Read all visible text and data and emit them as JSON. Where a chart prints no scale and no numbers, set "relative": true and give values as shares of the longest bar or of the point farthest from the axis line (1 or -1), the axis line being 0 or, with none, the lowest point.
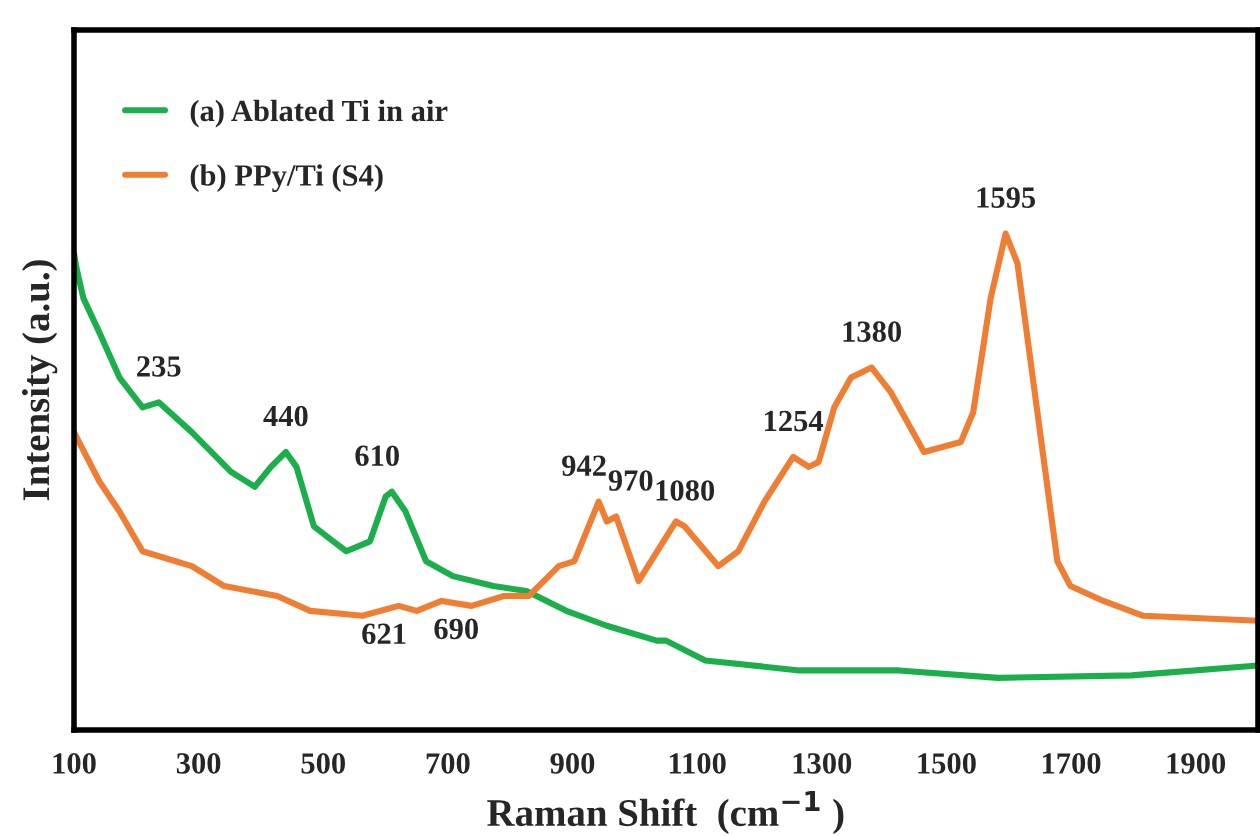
{
  "chart_data": {
    "type": "line",
    "relative": true,
    "xlabel": "Raman Shift  (cm$^{−1}$ )",
    "ylabel": "Intensity (a.u.)",
    "xlim": [
      100,
      2000
    ],
    "xticks": [
      100,
      300,
      500,
      700,
      900,
      1100,
      1300,
      1500,
      1700,
      1900
    ],
    "tick_labels": "x",
    "legend": "top left",
    "grid": false,
    "series": [
      {
        "name": "(a) Ablated Ti in air",
        "color": "#1aaf4b",
        "x": [
          100,
          104,
          115,
          141,
          173,
          210,
          236,
          289,
          352,
          390,
          416,
          440,
          457,
          485,
          516,
          537,
          575,
          600,
          610,
          632,
          665,
          708,
          773,
          826,
          890,
          955,
          1035,
          1050,
          1113,
          1264,
          1424,
          1583,
          1797,
          2000
        ],
        "values": [
          0.96,
          0.93,
          0.87,
          0.8,
          0.71,
          0.65,
          0.66,
          0.6,
          0.52,
          0.49,
          0.53,
          0.56,
          0.53,
          0.41,
          0.38,
          0.36,
          0.38,
          0.47,
          0.48,
          0.44,
          0.34,
          0.31,
          0.29,
          0.28,
          0.24,
          0.21,
          0.18,
          0.18,
          0.14,
          0.12,
          0.12,
          0.105,
          0.11,
          0.13
        ]
      },
      {
        "name": "(b) PPy/Ti (S4)",
        "color": "#ef7d32",
        "x": [
          100,
          104,
          141,
          173,
          210,
          289,
          341,
          426,
          479,
          563,
          621,
          650,
          690,
          738,
          790,
          830,
          878,
          903,
          942,
          955,
          970,
          1006,
          1066,
          1080,
          1134,
          1166,
          1208,
          1254,
          1279,
          1295,
          1320,
          1347,
          1380,
          1411,
          1464,
          1523,
          1543,
          1571,
          1595,
          1614,
          1678,
          1699,
          1752,
          1816,
          2000
        ],
        "values": [
          0.6,
          0.59,
          0.5,
          0.44,
          0.36,
          0.33,
          0.29,
          0.27,
          0.24,
          0.23,
          0.25,
          0.24,
          0.26,
          0.25,
          0.27,
          0.27,
          0.33,
          0.34,
          0.46,
          0.42,
          0.43,
          0.3,
          0.42,
          0.41,
          0.33,
          0.36,
          0.46,
          0.55,
          0.53,
          0.54,
          0.65,
          0.71,
          0.73,
          0.68,
          0.56,
          0.58,
          0.64,
          0.87,
          1.0,
          0.94,
          0.34,
          0.29,
          0.26,
          0.23,
          0.22
        ]
      }
    ],
    "annotations": [
      {
        "text": "235",
        "x": 236,
        "y": 0.66
      },
      {
        "text": "440",
        "x": 440,
        "y": 0.56
      },
      {
        "text": "610",
        "x": 610,
        "y": 0.48
      },
      {
        "text": "621",
        "x": 621,
        "y": 0.25
      },
      {
        "text": "690",
        "x": 690,
        "y": 0.26
      },
      {
        "text": "942",
        "x": 942,
        "y": 0.46
      },
      {
        "text": "970",
        "x": 970,
        "y": 0.43
      },
      {
        "text": "1080",
        "x": 1080,
        "y": 0.41
      },
      {
        "text": "1254",
        "x": 1254,
        "y": 0.55
      },
      {
        "text": "1380",
        "x": 1380,
        "y": 0.73
      },
      {
        "text": "1595",
        "x": 1595,
        "y": 1.0
      }
    ]
  }
}
